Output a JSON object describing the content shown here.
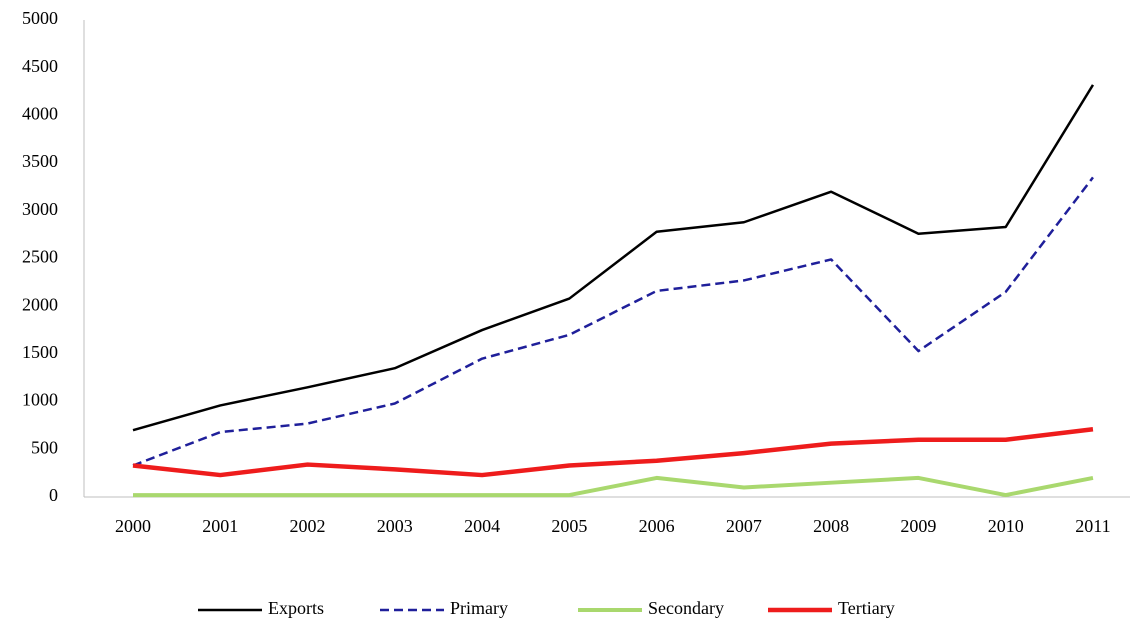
{
  "chart_data": {
    "type": "line",
    "categories": [
      "2000",
      "2001",
      "2002",
      "2003",
      "2004",
      "2005",
      "2006",
      "2007",
      "2008",
      "2009",
      "2010",
      "2011"
    ],
    "series": [
      {
        "name": "Exports",
        "color": "#000000",
        "values": [
          700,
          960,
          1150,
          1350,
          1750,
          2080,
          2780,
          2880,
          3200,
          2760,
          2830,
          4320
        ]
      },
      {
        "name": "Primary",
        "color": "#1f1f9a",
        "values": [
          330,
          680,
          770,
          980,
          1450,
          1700,
          2160,
          2270,
          2490,
          1530,
          2150,
          3350
        ]
      },
      {
        "name": "Secondary",
        "color": "#a9d86e",
        "values": [
          20,
          20,
          20,
          20,
          20,
          20,
          200,
          100,
          150,
          200,
          20,
          200
        ]
      },
      {
        "name": "Tertiary",
        "color": "#ee1c1c",
        "values": [
          330,
          230,
          340,
          290,
          230,
          330,
          380,
          460,
          560,
          600,
          600,
          710
        ]
      }
    ],
    "ylim": [
      0,
      5000
    ],
    "yticks": [
      0,
      500,
      1000,
      1500,
      2000,
      2500,
      3000,
      3500,
      4000,
      4500,
      5000
    ],
    "grid": false,
    "legend": "bottom"
  }
}
